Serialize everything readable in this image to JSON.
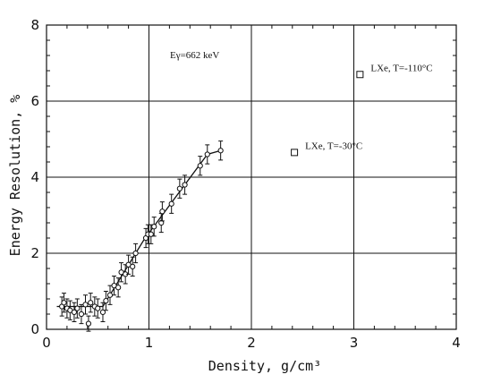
{
  "chart_data": {
    "type": "scatter",
    "title": "",
    "xlabel": "Density, g/cm³",
    "ylabel": "Energy Resolution, %",
    "xlim": [
      0,
      4
    ],
    "ylim": [
      0,
      8
    ],
    "x_ticks": [
      "0",
      "1",
      "2",
      "3",
      "4"
    ],
    "y_ticks": [
      "0",
      "2",
      "4",
      "6",
      "8"
    ],
    "grid": true,
    "annotation_energy": "Eγ=662 keV",
    "series": [
      {
        "marker": "circle",
        "points": [
          {
            "x": 0.15,
            "y": 0.6,
            "err": 0.25
          },
          {
            "x": 0.17,
            "y": 0.7,
            "err": 0.25
          },
          {
            "x": 0.2,
            "y": 0.55,
            "err": 0.25
          },
          {
            "x": 0.23,
            "y": 0.5,
            "err": 0.25
          },
          {
            "x": 0.27,
            "y": 0.45,
            "err": 0.25
          },
          {
            "x": 0.3,
            "y": 0.55,
            "err": 0.25
          },
          {
            "x": 0.34,
            "y": 0.4,
            "err": 0.25
          },
          {
            "x": 0.38,
            "y": 0.65,
            "err": 0.25
          },
          {
            "x": 0.41,
            "y": 0.15,
            "err": 0.2
          },
          {
            "x": 0.43,
            "y": 0.7,
            "err": 0.25
          },
          {
            "x": 0.47,
            "y": 0.6,
            "err": 0.25
          },
          {
            "x": 0.5,
            "y": 0.55,
            "err": 0.25
          },
          {
            "x": 0.55,
            "y": 0.45,
            "err": 0.25
          },
          {
            "x": 0.58,
            "y": 0.75,
            "err": 0.25
          },
          {
            "x": 0.62,
            "y": 0.9,
            "err": 0.25
          },
          {
            "x": 0.66,
            "y": 1.15,
            "err": 0.25
          },
          {
            "x": 0.7,
            "y": 1.1,
            "err": 0.25
          },
          {
            "x": 0.73,
            "y": 1.5,
            "err": 0.25
          },
          {
            "x": 0.77,
            "y": 1.45,
            "err": 0.25
          },
          {
            "x": 0.8,
            "y": 1.7,
            "err": 0.25
          },
          {
            "x": 0.84,
            "y": 1.65,
            "err": 0.25
          },
          {
            "x": 0.87,
            "y": 2.0,
            "err": 0.25
          },
          {
            "x": 0.97,
            "y": 2.4,
            "err": 0.25
          },
          {
            "x": 0.99,
            "y": 2.5,
            "err": 0.25
          },
          {
            "x": 1.02,
            "y": 2.5,
            "err": 0.25
          },
          {
            "x": 1.05,
            "y": 2.7,
            "err": 0.25
          },
          {
            "x": 1.12,
            "y": 2.8,
            "err": 0.25
          },
          {
            "x": 1.13,
            "y": 3.1,
            "err": 0.25
          },
          {
            "x": 1.22,
            "y": 3.3,
            "err": 0.25
          },
          {
            "x": 1.3,
            "y": 3.7,
            "err": 0.25
          },
          {
            "x": 1.35,
            "y": 3.8,
            "err": 0.25
          },
          {
            "x": 1.5,
            "y": 4.3,
            "err": 0.25
          },
          {
            "x": 1.57,
            "y": 4.6,
            "err": 0.25
          },
          {
            "x": 1.7,
            "y": 4.7,
            "err": 0.25
          }
        ]
      }
    ],
    "fit_line": [
      {
        "x": 0.1,
        "y": 0.6
      },
      {
        "x": 0.55,
        "y": 0.6
      },
      {
        "x": 0.95,
        "y": 2.35
      },
      {
        "x": 1.57,
        "y": 4.6
      },
      {
        "x": 1.7,
        "y": 4.7
      }
    ],
    "reference_points": [
      {
        "x": 2.42,
        "y": 4.65,
        "marker": "square",
        "label": "LXe, T=-30°C"
      },
      {
        "x": 3.06,
        "y": 6.7,
        "marker": "square",
        "label": "LXe, T=-110°C"
      }
    ]
  }
}
